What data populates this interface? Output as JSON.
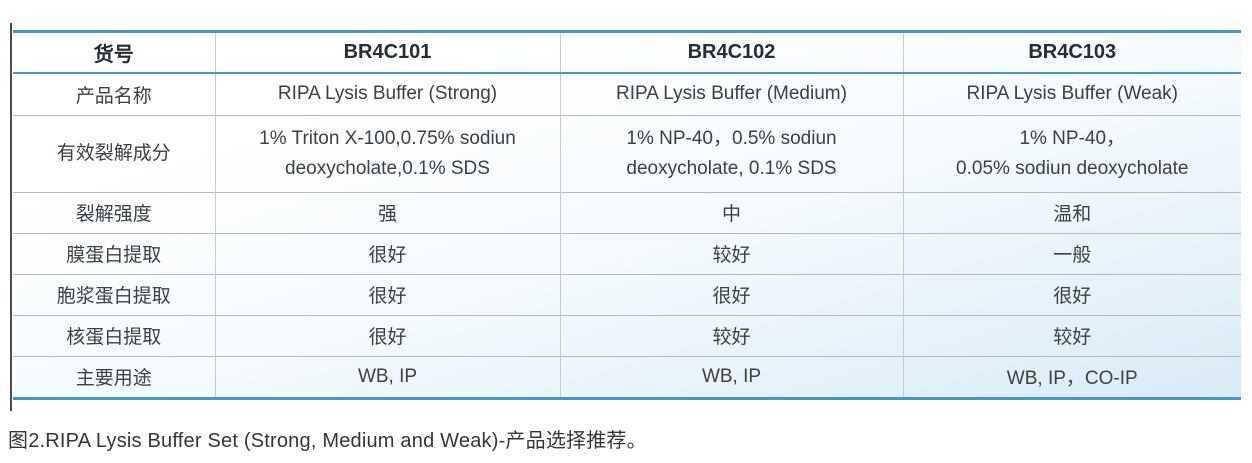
{
  "table": {
    "header": {
      "cells": [
        "货号",
        "BR4C101",
        "BR4C102",
        "BR4C103"
      ]
    },
    "rows": [
      {
        "label": "产品名称",
        "cells": [
          "RIPA Lysis Buffer (Strong)",
          "RIPA Lysis Buffer (Medium)",
          "RIPA Lysis Buffer (Weak)"
        ]
      },
      {
        "label": "有效裂解成分",
        "cells": [
          "1% Triton X-100,0.75% sodiun\ndeoxycholate,0.1% SDS",
          "1% NP-40，0.5% sodiun\ndeoxycholate, 0.1% SDS",
          "1% NP-40，\n0.05% sodiun deoxycholate"
        ]
      },
      {
        "label": "裂解强度",
        "cells": [
          "强",
          "中",
          "温和"
        ]
      },
      {
        "label": "膜蛋白提取",
        "cells": [
          "很好",
          "较好",
          "一般"
        ]
      },
      {
        "label": "胞浆蛋白提取",
        "cells": [
          "很好",
          "很好",
          "很好"
        ]
      },
      {
        "label": "核蛋白提取",
        "cells": [
          "很好",
          "较好",
          "较好"
        ]
      },
      {
        "label": "主要用途",
        "cells": [
          "WB, IP",
          "WB, IP",
          "WB, IP，CO-IP"
        ]
      }
    ]
  },
  "caption": "图2.RIPA Lysis Buffer Set (Strong, Medium and Weak)-产品选择推荐。",
  "colors": {
    "accent": "#4398c6",
    "rowline": "#b5babd",
    "colline": "#c7cbcd",
    "headtext": "#262d35",
    "bodytext": "#3c4147",
    "tint": "#d9ebf6",
    "darkedge": "#4f4f4f"
  }
}
